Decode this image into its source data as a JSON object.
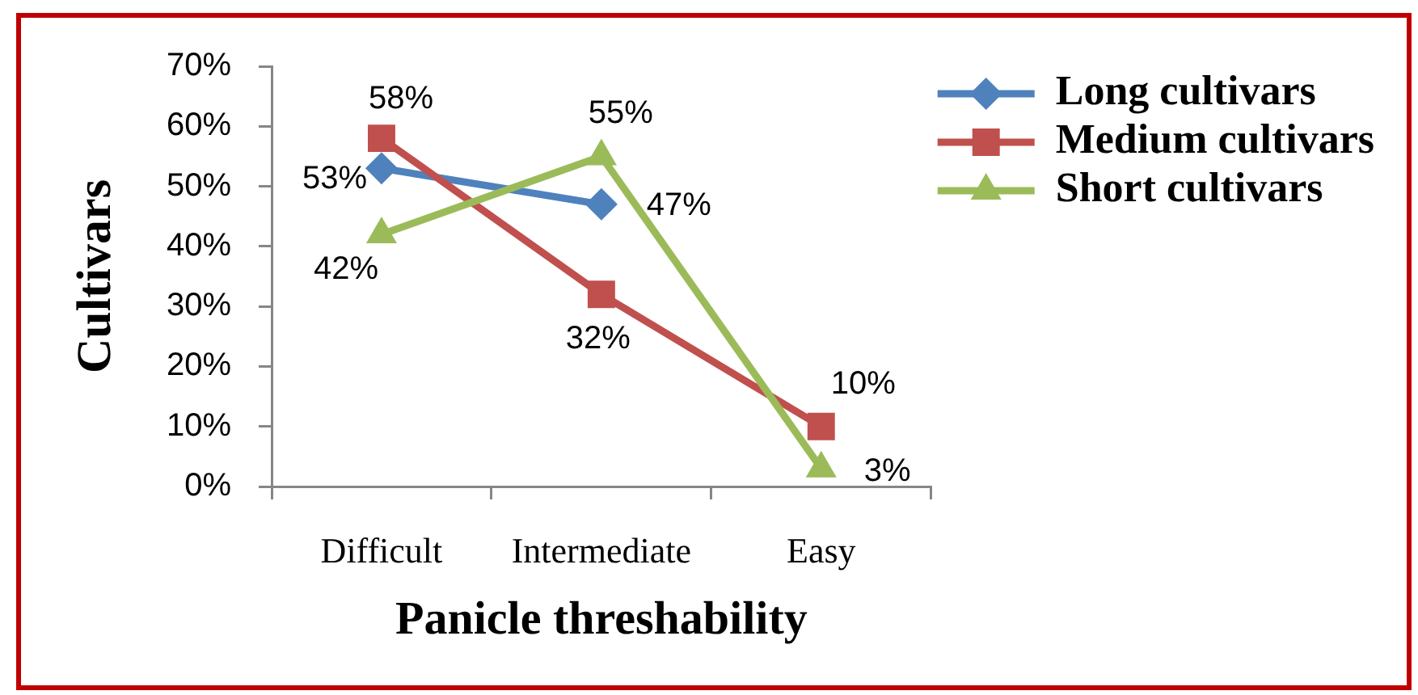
{
  "chart_data": {
    "type": "line",
    "xlabel": "Panicle threshability",
    "ylabel": "Cultivars",
    "categories": [
      "Difficult",
      "Intermediate",
      "Easy"
    ],
    "series": [
      {
        "name": "Long cultivars",
        "color": "#4f81bd",
        "marker": "diamond",
        "values": [
          53,
          47,
          null
        ],
        "value_labels": [
          "53%",
          "47%",
          null
        ]
      },
      {
        "name": "Medium cultivars",
        "color": "#c0504d",
        "marker": "square",
        "values": [
          58,
          32,
          10
        ],
        "value_labels": [
          "58%",
          "32%",
          "10%"
        ]
      },
      {
        "name": "Short cultivars",
        "color": "#9bbb59",
        "marker": "triangle",
        "values": [
          42,
          55,
          3
        ],
        "value_labels": [
          "42%",
          "55%",
          "3%"
        ]
      }
    ],
    "ylim": [
      0,
      70
    ],
    "yticks": [
      {
        "value": 0,
        "label": "0%"
      },
      {
        "value": 10,
        "label": "10%"
      },
      {
        "value": 20,
        "label": "20%"
      },
      {
        "value": 30,
        "label": "30%"
      },
      {
        "value": 40,
        "label": "40%"
      },
      {
        "value": 50,
        "label": "50%"
      },
      {
        "value": 60,
        "label": "60%"
      },
      {
        "value": 70,
        "label": "70%"
      }
    ],
    "legend": "top right"
  }
}
